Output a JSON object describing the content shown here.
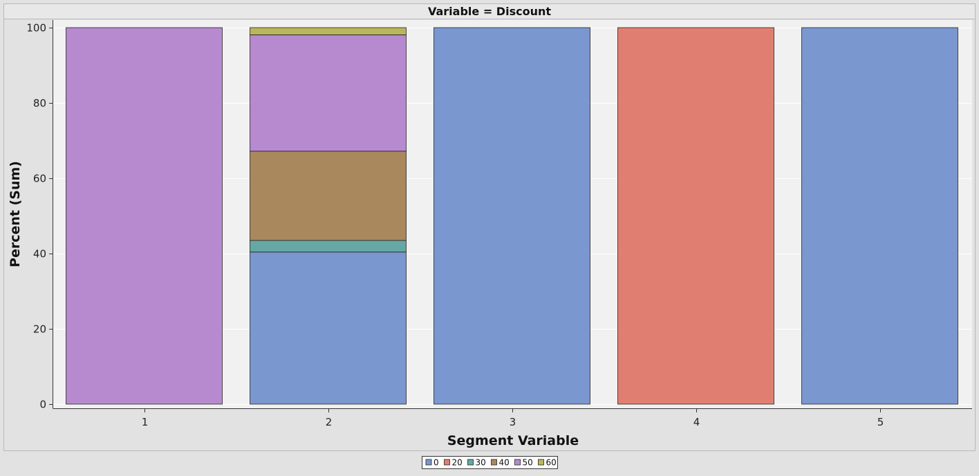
{
  "chart_data": {
    "type": "bar",
    "stacked": true,
    "title": "Variable = Discount",
    "xlabel": "Segment Variable",
    "ylabel": "Percent (Sum)",
    "ylim": [
      0,
      100
    ],
    "yticks": [
      0,
      20,
      40,
      60,
      80,
      100
    ],
    "grid": true,
    "legend_position": "bottom-center",
    "categories": [
      "1",
      "2",
      "3",
      "4",
      "5"
    ],
    "series": [
      {
        "name": "0",
        "color": "#7b97cf",
        "values": [
          0,
          40.4,
          100,
          0,
          100
        ]
      },
      {
        "name": "20",
        "color": "#e07f71",
        "values": [
          0,
          0,
          0,
          100,
          0
        ]
      },
      {
        "name": "30",
        "color": "#66a8a3",
        "values": [
          0,
          3.1,
          0,
          0,
          0
        ]
      },
      {
        "name": "40",
        "color": "#aa885e",
        "values": [
          0,
          23.7,
          0,
          0,
          0
        ]
      },
      {
        "name": "50",
        "color": "#b78acf",
        "values": [
          100,
          30.9,
          0,
          0,
          0
        ]
      },
      {
        "name": "60",
        "color": "#b9b65e",
        "values": [
          0,
          1.9,
          0,
          0,
          0
        ]
      }
    ]
  }
}
